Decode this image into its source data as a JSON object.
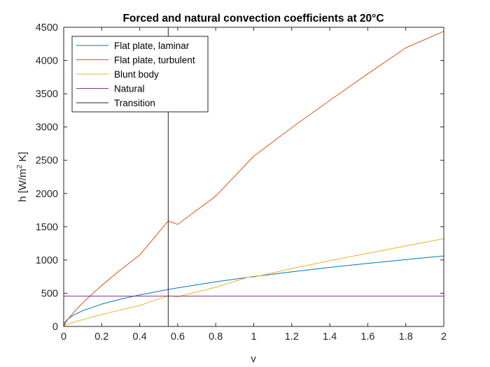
{
  "chart_data": {
    "type": "line",
    "title": "Forced and natural convection coefficients at 20°C",
    "xlabel": "v",
    "ylabel_main": "h [W/m",
    "ylabel_sup": "2",
    "ylabel_tail": " K]",
    "xlim": [
      0,
      2
    ],
    "ylim": [
      0,
      4500
    ],
    "x_ticks": [
      0,
      0.2,
      0.4,
      0.6,
      0.8,
      1,
      1.2,
      1.4,
      1.6,
      1.8,
      2
    ],
    "x_tick_labels": [
      "0",
      "0.2",
      "0.4",
      "0.6",
      "0.8",
      "1",
      "1.2",
      "1.4",
      "1.6",
      "1.8",
      "2"
    ],
    "y_ticks": [
      0,
      500,
      1000,
      1500,
      2000,
      2500,
      3000,
      3500,
      4000,
      4500
    ],
    "y_tick_labels": [
      "0",
      "500",
      "1000",
      "1500",
      "2000",
      "2500",
      "3000",
      "3500",
      "4000",
      "4500"
    ],
    "grid": false,
    "legend_position": "top-left",
    "series": [
      {
        "name": "Flat plate, laminar",
        "color": "#0072BD",
        "x": [
          0,
          0.005,
          0.01,
          0.02,
          0.05,
          0.1,
          0.2,
          0.3,
          0.4,
          0.55,
          0.6,
          0.8,
          0.97,
          1.0,
          1.2,
          1.4,
          1.6,
          1.8,
          2.0
        ],
        "y": [
          0,
          53,
          75,
          106,
          168,
          237,
          336,
          411,
          474,
          556,
          581,
          671,
          739,
          750,
          822,
          888,
          949,
          1006,
          1061
        ]
      },
      {
        "name": "Flat plate, turbulent",
        "color": "#D95319",
        "x": [
          0,
          0.005,
          0.01,
          0.02,
          0.05,
          0.1,
          0.12,
          0.2,
          0.3,
          0.4,
          0.55,
          0.6,
          0.8,
          1.0,
          1.2,
          1.4,
          1.6,
          1.8,
          2.0
        ],
        "y": [
          0,
          32,
          56,
          98,
          204,
          355,
          410,
          617,
          853,
          1075,
          1586,
          1536,
          1960,
          2560,
          2990,
          3400,
          3800,
          4190,
          4440
        ]
      },
      {
        "name": "Blunt body",
        "color": "#EDB120",
        "x": [
          0,
          0.005,
          0.01,
          0.02,
          0.05,
          0.1,
          0.2,
          0.3,
          0.4,
          0.55,
          0.6,
          0.8,
          0.97,
          1.0,
          1.2,
          1.4,
          1.6,
          1.8,
          2.0
        ],
        "y": [
          0,
          12,
          19,
          31,
          62,
          102,
          179,
          249,
          315,
          462,
          447,
          590,
          740,
          742,
          870,
          990,
          1100,
          1210,
          1320
        ]
      },
      {
        "name": "Natural",
        "color": "#7E2F8E",
        "x": [
          0,
          2
        ],
        "y": [
          456,
          456
        ]
      }
    ],
    "transition": {
      "name": "Transition",
      "color": "#262626",
      "x": 0.55
    }
  }
}
